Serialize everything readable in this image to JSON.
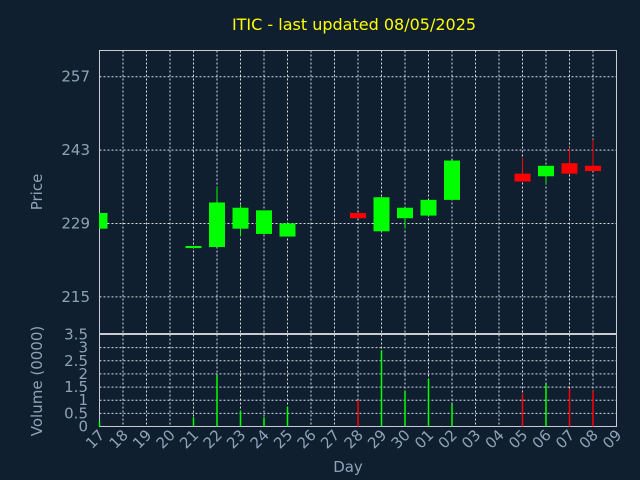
{
  "chart_data": [
    {
      "type": "candlestick",
      "title": "ITIC - last updated 08/05/2025",
      "ylabel": "Price",
      "xlabel": "Day",
      "ylim": [
        208,
        262
      ],
      "yticks": [
        215,
        229,
        243,
        257
      ],
      "grid": true,
      "colors": {
        "up": "#00ff00",
        "down": "#ff0000"
      },
      "categories": [
        "17",
        "18",
        "19",
        "20",
        "21",
        "22",
        "23",
        "24",
        "25",
        "26",
        "27",
        "28",
        "29",
        "30",
        "01",
        "02",
        "03",
        "04",
        "05",
        "06",
        "07",
        "08",
        "09"
      ],
      "candles": [
        {
          "x": "17",
          "open": 228.0,
          "close": 231.0,
          "high": 231.0,
          "low": 228.0
        },
        {
          "x": "21",
          "open": 224.3,
          "close": 224.7,
          "high": 224.7,
          "low": 224.3
        },
        {
          "x": "22",
          "open": 224.5,
          "close": 233.0,
          "high": 236.0,
          "low": 224.5
        },
        {
          "x": "23",
          "open": 228.0,
          "close": 232.0,
          "high": 232.5,
          "low": 226.5
        },
        {
          "x": "24",
          "open": 227.0,
          "close": 231.5,
          "high": 231.5,
          "low": 227.0
        },
        {
          "x": "25",
          "open": 226.5,
          "close": 229.0,
          "high": 229.0,
          "low": 226.5
        },
        {
          "x": "28",
          "open": 231.0,
          "close": 230.0,
          "high": 231.0,
          "low": 230.0
        },
        {
          "x": "29",
          "open": 227.5,
          "close": 234.0,
          "high": 234.0,
          "low": 227.5
        },
        {
          "x": "30",
          "open": 230.0,
          "close": 232.0,
          "high": 232.0,
          "low": 228.0
        },
        {
          "x": "01",
          "open": 230.5,
          "close": 233.5,
          "high": 233.5,
          "low": 230.5
        },
        {
          "x": "02",
          "open": 233.5,
          "close": 241.0,
          "high": 241.0,
          "low": 233.5
        },
        {
          "x": "05",
          "open": 238.5,
          "close": 237.0,
          "high": 241.5,
          "low": 237.0
        },
        {
          "x": "06",
          "open": 238.0,
          "close": 240.0,
          "high": 240.0,
          "low": 236.5
        },
        {
          "x": "07",
          "open": 240.5,
          "close": 238.5,
          "high": 243.5,
          "low": 238.5
        },
        {
          "x": "08",
          "open": 240.0,
          "close": 239.0,
          "high": 245.0,
          "low": 239.0
        }
      ]
    },
    {
      "type": "bar",
      "ylabel": "Volume (0000)",
      "ylim": [
        0,
        3.5
      ],
      "yticks": [
        "0",
        "0.5",
        "1",
        "1.5",
        "2",
        "2.5",
        "3",
        "3.5"
      ],
      "grid": true,
      "series": [
        {
          "x": "17",
          "value": 0.2,
          "color": "#00ff00"
        },
        {
          "x": "21",
          "value": 0.35,
          "color": "#00ff00"
        },
        {
          "x": "22",
          "value": 1.95,
          "color": "#00ff00"
        },
        {
          "x": "23",
          "value": 0.6,
          "color": "#00ff00"
        },
        {
          "x": "24",
          "value": 0.35,
          "color": "#00ff00"
        },
        {
          "x": "25",
          "value": 0.75,
          "color": "#00ff00"
        },
        {
          "x": "28",
          "value": 1.0,
          "color": "#ff0000"
        },
        {
          "x": "29",
          "value": 2.9,
          "color": "#00ff00"
        },
        {
          "x": "30",
          "value": 1.35,
          "color": "#00ff00"
        },
        {
          "x": "01",
          "value": 1.8,
          "color": "#00ff00"
        },
        {
          "x": "02",
          "value": 0.85,
          "color": "#00ff00"
        },
        {
          "x": "05",
          "value": 1.25,
          "color": "#ff0000"
        },
        {
          "x": "06",
          "value": 1.6,
          "color": "#00ff00"
        },
        {
          "x": "07",
          "value": 1.45,
          "color": "#ff0000"
        },
        {
          "x": "08",
          "value": 1.35,
          "color": "#ff0000"
        }
      ]
    }
  ]
}
